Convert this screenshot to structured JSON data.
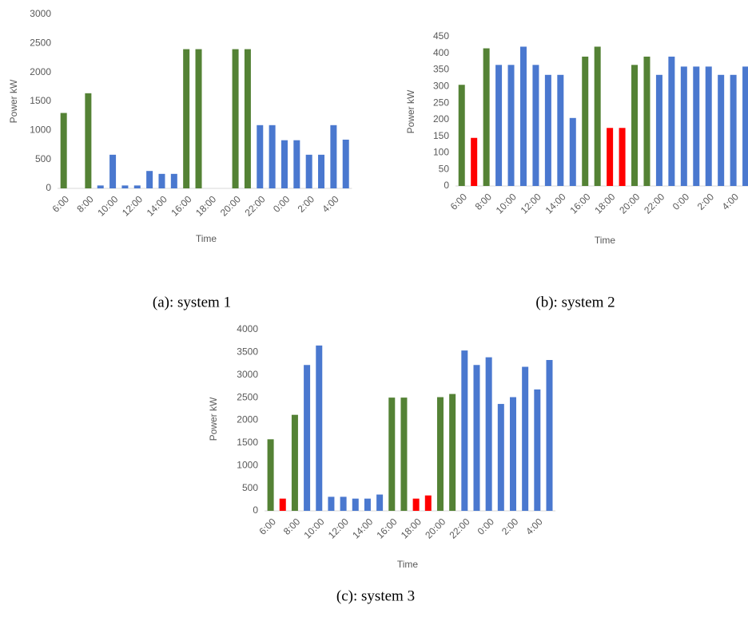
{
  "chart_data": [
    {
      "type": "bar",
      "caption": "(a): system 1",
      "y_label": "Power kW",
      "x_label": "Time",
      "categories": [
        "6:00",
        null,
        "8:00",
        null,
        "10:00",
        null,
        "12:00",
        null,
        "14:00",
        null,
        "16:00",
        null,
        "18:00",
        null,
        "20:00",
        null,
        "22:00",
        null,
        "0:00",
        null,
        "2:00",
        null,
        "4:00",
        null
      ],
      "values": [
        1300,
        0,
        1640,
        50,
        580,
        50,
        50,
        300,
        250,
        250,
        2400,
        2400,
        0,
        0,
        2400,
        2400,
        1090,
        1090,
        830,
        830,
        580,
        580,
        1090,
        840
      ],
      "colors": [
        "#548235",
        "#4a78cf",
        "#548235",
        "#4a78cf",
        "#4a78cf",
        "#4a78cf",
        "#4a78cf",
        "#4a78cf",
        "#4a78cf",
        "#4a78cf",
        "#548235",
        "#548235",
        "#4a78cf",
        "#4a78cf",
        "#548235",
        "#548235",
        "#4a78cf",
        "#4a78cf",
        "#4a78cf",
        "#4a78cf",
        "#4a78cf",
        "#4a78cf",
        "#4a78cf",
        "#4a78cf"
      ],
      "ylim": [
        0,
        3000
      ],
      "yticks": [
        0,
        500,
        1000,
        1500,
        2000,
        2500,
        3000
      ]
    },
    {
      "type": "bar",
      "caption": "(b): system 2",
      "y_label": "Power kW",
      "x_label": "Time",
      "categories": [
        "6:00",
        null,
        "8:00",
        null,
        "10:00",
        null,
        "12:00",
        null,
        "14:00",
        null,
        "16:00",
        null,
        "18:00",
        null,
        "20:00",
        null,
        "22:00",
        null,
        "0:00",
        null,
        "2:00",
        null,
        "4:00",
        null
      ],
      "values": [
        305,
        145,
        415,
        365,
        365,
        420,
        365,
        335,
        335,
        205,
        390,
        420,
        175,
        175,
        365,
        390,
        335,
        390,
        360,
        360,
        360,
        335,
        335,
        360
      ],
      "colors": [
        "#548235",
        "#ff0000",
        "#548235",
        "#4a78cf",
        "#4a78cf",
        "#4a78cf",
        "#4a78cf",
        "#4a78cf",
        "#4a78cf",
        "#4a78cf",
        "#548235",
        "#548235",
        "#ff0000",
        "#ff0000",
        "#548235",
        "#548235",
        "#4a78cf",
        "#4a78cf",
        "#4a78cf",
        "#4a78cf",
        "#4a78cf",
        "#4a78cf",
        "#4a78cf",
        "#4a78cf"
      ],
      "ylim": [
        0,
        450
      ],
      "yticks": [
        0,
        50,
        100,
        150,
        200,
        250,
        300,
        350,
        400,
        450
      ]
    },
    {
      "type": "bar",
      "caption": "(c): system 3",
      "y_label": "Power  kW",
      "x_label": "Time",
      "categories": [
        "6:00",
        null,
        "8:00",
        null,
        "10:00",
        null,
        "12:00",
        null,
        "14:00",
        null,
        "16:00",
        null,
        "18:00",
        null,
        "20:00",
        null,
        "22:00",
        null,
        "0:00",
        null,
        "2:00",
        null,
        "4:00",
        null
      ],
      "values": [
        1580,
        270,
        2120,
        3220,
        3650,
        310,
        310,
        270,
        270,
        360,
        2500,
        2500,
        270,
        340,
        2510,
        2580,
        3540,
        3220,
        3390,
        2360,
        2510,
        3180,
        2680,
        3330
      ],
      "colors": [
        "#548235",
        "#ff0000",
        "#548235",
        "#4a78cf",
        "#4a78cf",
        "#4a78cf",
        "#4a78cf",
        "#4a78cf",
        "#4a78cf",
        "#4a78cf",
        "#548235",
        "#548235",
        "#ff0000",
        "#ff0000",
        "#548235",
        "#548235",
        "#4a78cf",
        "#4a78cf",
        "#4a78cf",
        "#4a78cf",
        "#4a78cf",
        "#4a78cf",
        "#4a78cf",
        "#4a78cf"
      ],
      "ylim": [
        0,
        4000
      ],
      "yticks": [
        0,
        500,
        1000,
        1500,
        2000,
        2500,
        3000,
        3500,
        4000
      ]
    }
  ]
}
